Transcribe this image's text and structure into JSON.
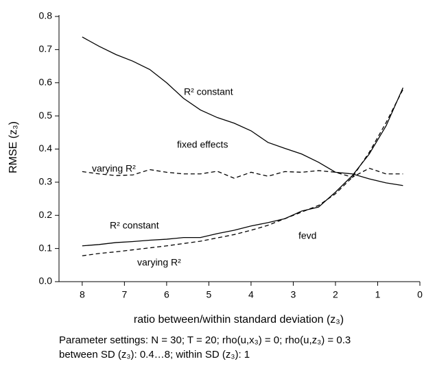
{
  "chart_data": {
    "type": "line",
    "x": [
      8,
      7.6,
      7.2,
      6.8,
      6.4,
      6,
      5.6,
      5.2,
      4.8,
      4.4,
      4,
      3.6,
      3.2,
      2.8,
      2.4,
      2,
      1.6,
      1.2,
      0.8,
      0.4
    ],
    "series": [
      {
        "color": "#000000",
        "linestyle": "solid",
        "values": [
          0.738,
          0.71,
          0.685,
          0.665,
          0.64,
          0.6,
          0.553,
          0.518,
          0.495,
          0.478,
          0.455,
          0.42,
          0.402,
          0.385,
          0.36,
          0.33,
          0.325,
          0.31,
          0.298,
          0.29
        ]
      },
      {
        "color": "#000000",
        "linestyle": "dashed",
        "values": [
          0.332,
          0.325,
          0.32,
          0.322,
          0.338,
          0.33,
          0.325,
          0.325,
          0.333,
          0.312,
          0.33,
          0.318,
          0.332,
          0.33,
          0.335,
          0.33,
          0.315,
          0.342,
          0.325,
          0.325
        ]
      },
      {
        "color": "#000000",
        "linestyle": "solid",
        "values": [
          0.108,
          0.112,
          0.118,
          0.121,
          0.125,
          0.128,
          0.133,
          0.133,
          0.145,
          0.155,
          0.168,
          0.178,
          0.19,
          0.213,
          0.225,
          0.27,
          0.32,
          0.385,
          0.47,
          0.585
        ]
      },
      {
        "color": "#000000",
        "linestyle": "dashed",
        "values": [
          0.078,
          0.085,
          0.09,
          0.096,
          0.102,
          0.108,
          0.115,
          0.122,
          0.132,
          0.142,
          0.155,
          0.17,
          0.19,
          0.21,
          0.23,
          0.265,
          0.315,
          0.39,
          0.48,
          0.58
        ]
      }
    ],
    "annotations": [
      "R² constant",
      "fixed effects",
      "varying R²",
      "R² constant",
      "fevd",
      "varying R²"
    ],
    "xlabel": "ratio between/within standard deviation (z₃)",
    "ylabel": "RMSE (z₃)",
    "caption": [
      "Parameter settings: N = 30; T = 20; rho(u,x₃) = 0; rho(u,z₃) = 0.3",
      "between SD (z₃): 0.4…8; within SD (z₃): 1"
    ],
    "xlim": [
      8.55,
      0
    ],
    "xticks": [
      8,
      7,
      6,
      5,
      4,
      3,
      2,
      1,
      0
    ],
    "ylim": [
      0,
      0.8
    ],
    "yticks": [
      {
        "value": 0,
        "label": "0.0"
      },
      0.1,
      0.2,
      0.3,
      0.4,
      0.5,
      0.6,
      0.7,
      0.8
    ],
    "grid": false
  }
}
